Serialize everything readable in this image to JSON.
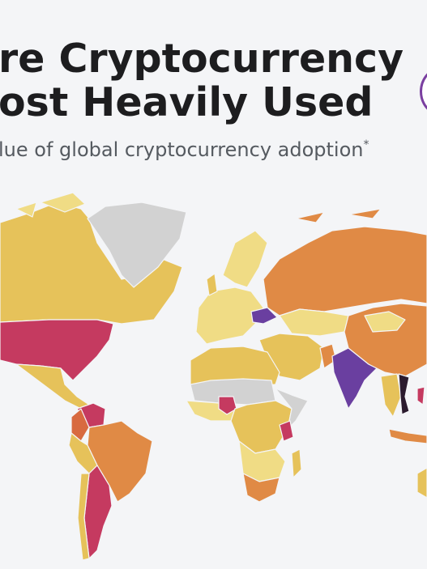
{
  "header": {
    "title_lines": [
      "re Cryptocurrency",
      "ost Heavily Used"
    ],
    "subtitle": "lue of global cryptocurrency adoption",
    "subtitle_mark": "*"
  }
}
